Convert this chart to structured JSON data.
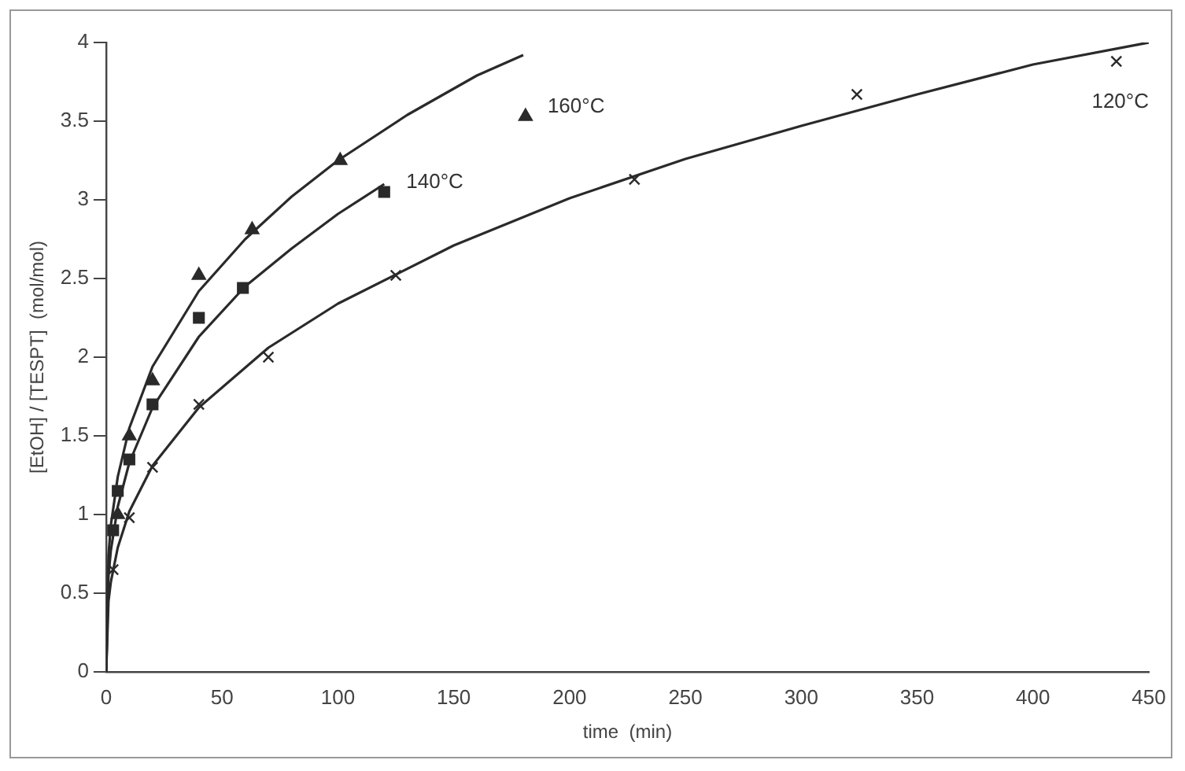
{
  "chart_data": {
    "type": "scatter",
    "xlabel": "time  (min)",
    "ylabel": "[EtOH] / [TESPT]  (mol/mol)",
    "xlim": [
      0,
      450
    ],
    "xticks": [
      0,
      50,
      100,
      150,
      200,
      250,
      300,
      350,
      400,
      450
    ],
    "ylim": [
      0,
      4
    ],
    "yticks": [
      0,
      0.5,
      1,
      1.5,
      2,
      2.5,
      3,
      3.5,
      4
    ],
    "grid": false,
    "legend": false,
    "line_style": "solid",
    "series": [
      {
        "type": "line",
        "marker": "none",
        "color": "#2a2a2a",
        "x": [
          0,
          1,
          2,
          5,
          10,
          20,
          40,
          60,
          80,
          100,
          130,
          160,
          180
        ],
        "values": [
          0,
          0.74,
          0.93,
          1.24,
          1.55,
          1.94,
          2.42,
          2.75,
          3.02,
          3.25,
          3.54,
          3.79,
          3.92
        ]
      },
      {
        "type": "line",
        "marker": "none",
        "color": "#2a2a2a",
        "x": [
          0,
          1,
          2,
          5,
          10,
          20,
          40,
          60,
          80,
          100,
          120
        ],
        "values": [
          0,
          0.61,
          0.77,
          1.05,
          1.33,
          1.68,
          2.13,
          2.45,
          2.69,
          2.91,
          3.1
        ]
      },
      {
        "type": "line",
        "marker": "none",
        "color": "#2a2a2a",
        "x": [
          0,
          1,
          2,
          5,
          10,
          20,
          40,
          70,
          100,
          150,
          200,
          250,
          300,
          350,
          400,
          450
        ],
        "values": [
          0,
          0.45,
          0.57,
          0.79,
          1.02,
          1.31,
          1.68,
          2.06,
          2.34,
          2.71,
          3.01,
          3.26,
          3.47,
          3.67,
          3.86,
          4.0
        ]
      },
      {
        "type": "scatter",
        "name": "160°C",
        "marker": "triangle",
        "color": "#2a2a2a",
        "x": [
          5,
          10,
          20,
          40,
          63,
          101,
          181
        ],
        "values": [
          1.0,
          1.5,
          1.85,
          2.52,
          2.81,
          3.25,
          3.53
        ]
      },
      {
        "type": "scatter",
        "name": "140°C",
        "marker": "square",
        "color": "#2a2a2a",
        "x": [
          3,
          5,
          10,
          20,
          40,
          59,
          120
        ],
        "values": [
          0.9,
          1.15,
          1.35,
          1.7,
          2.25,
          2.44,
          3.05
        ]
      },
      {
        "type": "scatter",
        "name": "120°C",
        "marker": "cross",
        "color": "#2a2a2a",
        "x": [
          3,
          10,
          20,
          40,
          70,
          125,
          228,
          324,
          436
        ],
        "values": [
          0.65,
          0.98,
          1.3,
          1.7,
          2.0,
          2.52,
          3.13,
          3.67,
          3.88
        ]
      }
    ]
  }
}
